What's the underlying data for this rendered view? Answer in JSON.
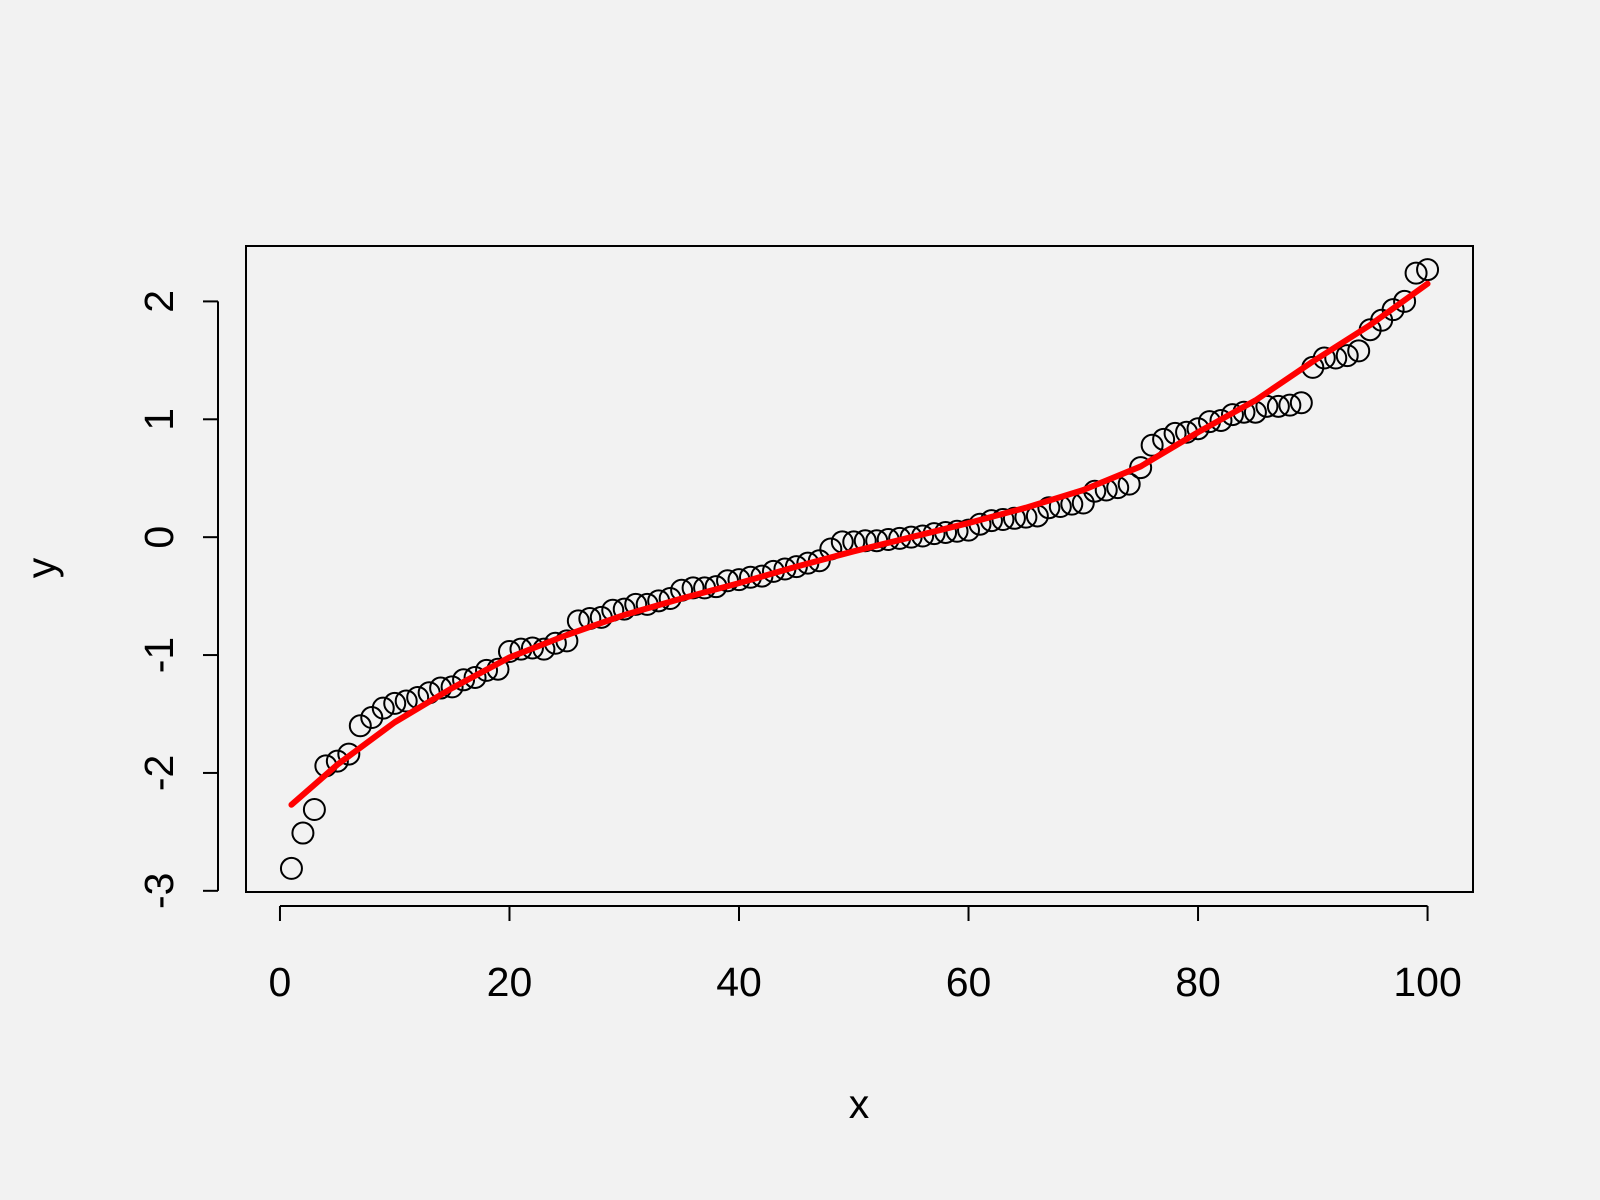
{
  "chart_data": {
    "type": "scatter",
    "xlabel": "x",
    "ylabel": "y",
    "xlim": [
      -2.96,
      103.96
    ],
    "ylim": [
      -3.01,
      2.47
    ],
    "xticks": [
      0,
      20,
      40,
      60,
      80,
      100
    ],
    "yticks": [
      -3,
      -2,
      -1,
      0,
      1,
      2
    ],
    "series": [
      {
        "type": "scatter",
        "color": "#000000",
        "x": [
          1,
          2,
          3,
          4,
          5,
          6,
          7,
          8,
          9,
          10,
          11,
          12,
          13,
          14,
          15,
          16,
          17,
          18,
          19,
          20,
          21,
          22,
          23,
          24,
          25,
          26,
          27,
          28,
          29,
          30,
          31,
          32,
          33,
          34,
          35,
          36,
          37,
          38,
          39,
          40,
          41,
          42,
          43,
          44,
          45,
          46,
          47,
          48,
          49,
          50,
          51,
          52,
          53,
          54,
          55,
          56,
          57,
          58,
          59,
          60,
          61,
          62,
          63,
          64,
          65,
          66,
          67,
          68,
          69,
          70,
          71,
          72,
          73,
          74,
          75,
          76,
          77,
          78,
          79,
          80,
          81,
          82,
          83,
          84,
          85,
          86,
          87,
          88,
          89,
          90,
          91,
          92,
          93,
          94,
          95,
          96,
          97,
          98,
          99,
          100
        ],
        "values": [
          -2.81,
          -2.51,
          -2.31,
          -1.94,
          -1.9,
          -1.84,
          -1.6,
          -1.53,
          -1.45,
          -1.41,
          -1.39,
          -1.36,
          -1.32,
          -1.28,
          -1.27,
          -1.21,
          -1.19,
          -1.13,
          -1.12,
          -0.97,
          -0.95,
          -0.94,
          -0.95,
          -0.9,
          -0.88,
          -0.71,
          -0.69,
          -0.68,
          -0.62,
          -0.61,
          -0.57,
          -0.57,
          -0.54,
          -0.52,
          -0.45,
          -0.43,
          -0.43,
          -0.42,
          -0.37,
          -0.36,
          -0.34,
          -0.33,
          -0.29,
          -0.27,
          -0.25,
          -0.22,
          -0.2,
          -0.1,
          -0.04,
          -0.04,
          -0.03,
          -0.03,
          -0.02,
          -0.01,
          0.0,
          0.01,
          0.03,
          0.04,
          0.05,
          0.06,
          0.11,
          0.14,
          0.15,
          0.16,
          0.17,
          0.18,
          0.25,
          0.26,
          0.28,
          0.29,
          0.39,
          0.4,
          0.42,
          0.45,
          0.59,
          0.78,
          0.83,
          0.88,
          0.89,
          0.92,
          0.98,
          0.99,
          1.04,
          1.06,
          1.06,
          1.11,
          1.11,
          1.12,
          1.14,
          1.44,
          1.52,
          1.52,
          1.54,
          1.58,
          1.76,
          1.84,
          1.93,
          2.0,
          2.24,
          2.27
        ]
      },
      {
        "type": "line",
        "color": "#ff0000",
        "x": [
          1,
          5,
          10,
          15,
          20,
          25,
          30,
          35,
          40,
          45,
          50,
          55,
          60,
          65,
          70,
          75,
          80,
          85,
          90,
          95,
          100
        ],
        "values": [
          -2.27,
          -1.93,
          -1.57,
          -1.28,
          -1.02,
          -0.83,
          -0.66,
          -0.52,
          -0.39,
          -0.25,
          -0.12,
          0.0,
          0.12,
          0.25,
          0.4,
          0.6,
          0.89,
          1.16,
          1.49,
          1.8,
          2.15
        ]
      }
    ]
  }
}
